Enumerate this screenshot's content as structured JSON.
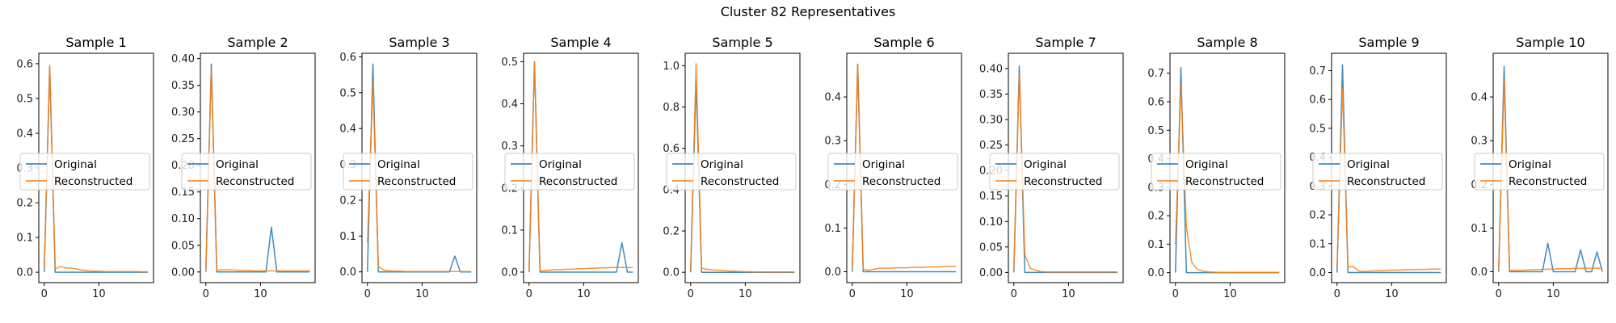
{
  "chart_data": {
    "type": "line",
    "suptitle": "Cluster 82 Representatives",
    "legend_placement": "center-left",
    "colors": {
      "original": "#1f77b4",
      "reconstructed": "#ff7f0e"
    },
    "x": [
      0,
      1,
      2,
      3,
      4,
      5,
      6,
      7,
      8,
      9,
      10,
      11,
      12,
      13,
      14,
      15,
      16,
      17,
      18,
      19
    ],
    "xticks": [
      0,
      10
    ],
    "xlim": [
      -1,
      20
    ],
    "panels": [
      {
        "title": "Sample 1",
        "ylim": [
          -0.03,
          0.63
        ],
        "yticks": [
          0.0,
          0.1,
          0.2,
          0.3,
          0.4,
          0.5,
          0.6
        ],
        "yticklabels": [
          "0.0",
          "0.1",
          "0.2",
          "0.3",
          "0.4",
          "0.5",
          "0.6"
        ],
        "series": [
          {
            "name": "Original",
            "values": [
              0.0,
              0.59,
              0.0,
              0.0,
              0.0,
              0.0,
              0.0,
              0.0,
              0.0,
              0.0,
              0.0,
              0.0,
              0.0,
              0.0,
              0.0,
              0.0,
              0.0,
              0.0,
              0.0,
              0.0
            ]
          },
          {
            "name": "Reconstructed",
            "values": [
              0.01,
              0.595,
              0.01,
              0.016,
              0.012,
              0.012,
              0.009,
              0.006,
              0.004,
              0.003,
              0.003,
              0.002,
              0.002,
              0.002,
              0.002,
              0.002,
              0.002,
              0.002,
              0.001,
              0.001
            ]
          }
        ]
      },
      {
        "title": "Sample 2",
        "ylim": [
          -0.02,
          0.41
        ],
        "yticks": [
          0.0,
          0.05,
          0.1,
          0.15,
          0.2,
          0.25,
          0.3,
          0.35,
          0.4
        ],
        "yticklabels": [
          "0.00",
          "0.05",
          "0.10",
          "0.15",
          "0.20",
          "0.25",
          "0.30",
          "0.35",
          "0.40"
        ],
        "series": [
          {
            "name": "Original",
            "values": [
              0.0,
              0.39,
              0.0,
              0.0,
              0.0,
              0.0,
              0.0,
              0.0,
              0.0,
              0.0,
              0.0,
              0.0,
              0.084,
              0.0,
              0.0,
              0.0,
              0.0,
              0.0,
              0.0,
              0.0
            ]
          },
          {
            "name": "Reconstructed",
            "values": [
              0.002,
              0.38,
              0.003,
              0.004,
              0.004,
              0.004,
              0.003,
              0.003,
              0.003,
              0.002,
              0.002,
              0.002,
              0.002,
              0.002,
              0.002,
              0.002,
              0.002,
              0.002,
              0.002,
              0.002
            ]
          }
        ]
      },
      {
        "title": "Sample 3",
        "ylim": [
          -0.03,
          0.61
        ],
        "yticks": [
          0.0,
          0.1,
          0.2,
          0.3,
          0.4,
          0.5,
          0.6
        ],
        "yticklabels": [
          "0.0",
          "0.1",
          "0.2",
          "0.3",
          "0.4",
          "0.5",
          "0.6"
        ],
        "series": [
          {
            "name": "Original",
            "values": [
              0.0,
              0.58,
              0.0,
              0.0,
              0.0,
              0.0,
              0.0,
              0.0,
              0.0,
              0.0,
              0.0,
              0.0,
              0.0,
              0.0,
              0.0,
              0.0,
              0.044,
              0.0,
              0.0,
              0.0
            ]
          },
          {
            "name": "Reconstructed",
            "values": [
              0.08,
              0.53,
              0.015,
              0.005,
              0.003,
              0.002,
              0.002,
              0.001,
              0.001,
              0.001,
              0.001,
              0.001,
              0.001,
              0.001,
              0.001,
              0.001,
              0.001,
              0.001,
              0.001,
              0.001
            ]
          }
        ]
      },
      {
        "title": "Sample 4",
        "ylim": [
          -0.025,
          0.52
        ],
        "yticks": [
          0.0,
          0.1,
          0.2,
          0.3,
          0.4,
          0.5
        ],
        "yticklabels": [
          "0.0",
          "0.1",
          "0.2",
          "0.3",
          "0.4",
          "0.5"
        ],
        "series": [
          {
            "name": "Original",
            "values": [
              0.0,
              0.5,
              0.0,
              0.0,
              0.0,
              0.0,
              0.0,
              0.0,
              0.0,
              0.0,
              0.0,
              0.0,
              0.0,
              0.0,
              0.0,
              0.0,
              0.0,
              0.07,
              0.0,
              0.0
            ]
          },
          {
            "name": "Reconstructed",
            "values": [
              0.003,
              0.5,
              0.003,
              0.004,
              0.005,
              0.006,
              0.006,
              0.007,
              0.007,
              0.008,
              0.008,
              0.009,
              0.009,
              0.01,
              0.01,
              0.011,
              0.011,
              0.011,
              0.011,
              0.011
            ]
          }
        ]
      },
      {
        "title": "Sample 5",
        "ylim": [
          -0.05,
          1.06
        ],
        "yticks": [
          0.0,
          0.2,
          0.4,
          0.6,
          0.8,
          1.0
        ],
        "yticklabels": [
          "0.0",
          "0.2",
          "0.4",
          "0.6",
          "0.8",
          "1.0"
        ],
        "series": [
          {
            "name": "Original",
            "values": [
              0.0,
              0.93,
              0.0,
              0.0,
              0.0,
              0.0,
              0.0,
              0.0,
              0.0,
              0.0,
              0.0,
              0.0,
              0.0,
              0.0,
              0.0,
              0.0,
              0.0,
              0.0,
              0.0,
              0.0
            ]
          },
          {
            "name": "Reconstructed",
            "values": [
              0.01,
              1.01,
              0.02,
              0.015,
              0.012,
              0.01,
              0.008,
              0.006,
              0.005,
              0.004,
              0.003,
              0.003,
              0.002,
              0.002,
              0.002,
              0.002,
              0.002,
              0.002,
              0.002,
              0.002
            ]
          }
        ]
      },
      {
        "title": "Sample 6",
        "ylim": [
          -0.025,
          0.5
        ],
        "yticks": [
          0.0,
          0.1,
          0.2,
          0.3,
          0.4
        ],
        "yticklabels": [
          "0.0",
          "0.1",
          "0.2",
          "0.3",
          "0.4"
        ],
        "series": [
          {
            "name": "Original",
            "values": [
              0.0,
              0.475,
              0.0,
              0.0,
              0.0,
              0.0,
              0.0,
              0.0,
              0.0,
              0.0,
              0.0,
              0.0,
              0.0,
              0.0,
              0.0,
              0.0,
              0.0,
              0.0,
              0.0,
              0.0
            ]
          },
          {
            "name": "Reconstructed",
            "values": [
              0.005,
              0.475,
              0.006,
              0.003,
              0.006,
              0.008,
              0.008,
              0.008,
              0.009,
              0.009,
              0.009,
              0.01,
              0.01,
              0.01,
              0.011,
              0.011,
              0.011,
              0.012,
              0.012,
              0.012
            ]
          }
        ]
      },
      {
        "title": "Sample 7",
        "ylim": [
          -0.02,
          0.43
        ],
        "yticks": [
          0.0,
          0.05,
          0.1,
          0.15,
          0.2,
          0.25,
          0.3,
          0.35,
          0.4
        ],
        "yticklabels": [
          "0.00",
          "0.05",
          "0.10",
          "0.15",
          "0.20",
          "0.25",
          "0.30",
          "0.35",
          "0.40"
        ],
        "series": [
          {
            "name": "Original",
            "values": [
              0.0,
              0.405,
              0.0,
              0.0,
              0.0,
              0.0,
              0.0,
              0.0,
              0.0,
              0.0,
              0.0,
              0.0,
              0.0,
              0.0,
              0.0,
              0.0,
              0.0,
              0.0,
              0.0,
              0.0
            ]
          },
          {
            "name": "Reconstructed",
            "values": [
              0.005,
              0.39,
              0.035,
              0.008,
              0.004,
              0.002,
              0.001,
              0.001,
              0.001,
              0.001,
              0.001,
              0.001,
              0.001,
              0.001,
              0.001,
              0.001,
              0.001,
              0.001,
              0.001,
              0.001
            ]
          }
        ]
      },
      {
        "title": "Sample 8",
        "ylim": [
          -0.035,
          0.77
        ],
        "yticks": [
          0.0,
          0.1,
          0.2,
          0.3,
          0.4,
          0.5,
          0.6,
          0.7
        ],
        "yticklabels": [
          "0.0",
          "0.1",
          "0.2",
          "0.3",
          "0.4",
          "0.5",
          "0.6",
          "0.7"
        ],
        "series": [
          {
            "name": "Original",
            "values": [
              0.0,
              0.72,
              0.0,
              0.0,
              0.0,
              0.0,
              0.0,
              0.0,
              0.0,
              0.0,
              0.0,
              0.0,
              0.0,
              0.0,
              0.0,
              0.0,
              0.0,
              0.0,
              0.0,
              0.0
            ]
          },
          {
            "name": "Reconstructed",
            "values": [
              0.1,
              0.66,
              0.16,
              0.035,
              0.012,
              0.005,
              0.003,
              0.002,
              0.001,
              0.001,
              0.001,
              0.001,
              0.001,
              0.001,
              0.001,
              0.001,
              0.001,
              0.001,
              0.001,
              0.001
            ]
          }
        ]
      },
      {
        "title": "Sample 9",
        "ylim": [
          -0.035,
          0.76
        ],
        "yticks": [
          0.0,
          0.1,
          0.2,
          0.3,
          0.4,
          0.5,
          0.6,
          0.7
        ],
        "yticklabels": [
          "0.0",
          "0.1",
          "0.2",
          "0.3",
          "0.4",
          "0.5",
          "0.6",
          "0.7"
        ],
        "series": [
          {
            "name": "Original",
            "values": [
              0.0,
              0.72,
              0.0,
              0.0,
              0.0,
              0.0,
              0.0,
              0.0,
              0.0,
              0.0,
              0.0,
              0.0,
              0.0,
              0.0,
              0.0,
              0.0,
              0.0,
              0.0,
              0.0,
              0.0
            ]
          },
          {
            "name": "Reconstructed",
            "values": [
              0.02,
              0.64,
              0.02,
              0.02,
              0.005,
              0.004,
              0.005,
              0.006,
              0.006,
              0.007,
              0.008,
              0.008,
              0.009,
              0.01,
              0.01,
              0.011,
              0.011,
              0.012,
              0.012,
              0.012
            ]
          }
        ]
      },
      {
        "title": "Sample 10",
        "ylim": [
          -0.025,
          0.5
        ],
        "yticks": [
          0.0,
          0.1,
          0.2,
          0.3,
          0.4
        ],
        "yticklabels": [
          "0.0",
          "0.1",
          "0.2",
          "0.3",
          "0.4"
        ],
        "series": [
          {
            "name": "Original",
            "values": [
              0.0,
              0.47,
              0.0,
              0.0,
              0.0,
              0.0,
              0.0,
              0.0,
              0.0,
              0.065,
              0.0,
              0.0,
              0.0,
              0.0,
              0.0,
              0.05,
              0.0,
              0.0,
              0.045,
              0.0
            ]
          },
          {
            "name": "Reconstructed",
            "values": [
              0.005,
              0.44,
              0.003,
              0.003,
              0.003,
              0.004,
              0.004,
              0.005,
              0.005,
              0.006,
              0.006,
              0.007,
              0.007,
              0.007,
              0.008,
              0.008,
              0.008,
              0.008,
              0.008,
              0.008
            ]
          }
        ]
      }
    ]
  }
}
